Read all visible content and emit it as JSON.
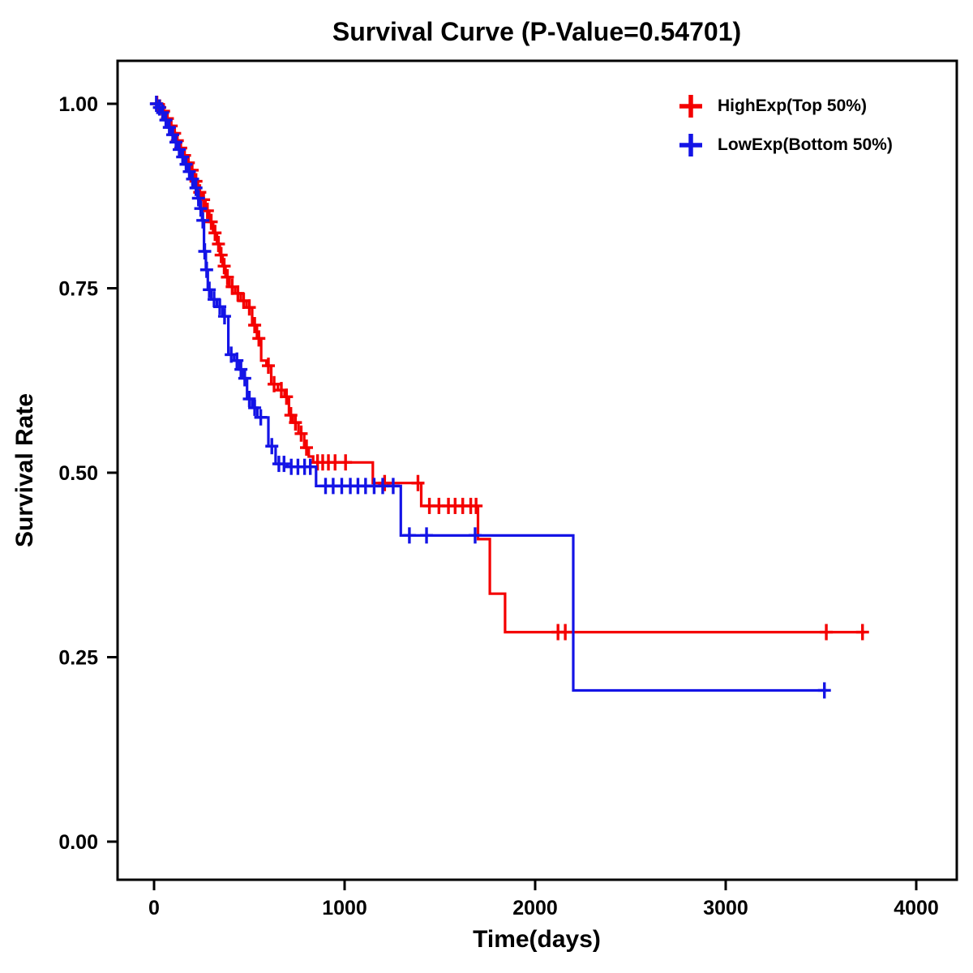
{
  "chart_data": {
    "type": "line",
    "subtype": "kaplan-meier-step",
    "title": "Survival Curve (P-Value=0.54701)",
    "p_value": "0.54701",
    "xlabel": "Time(days)",
    "ylabel": "Survival Rate",
    "xlim": [
      0,
      4000
    ],
    "ylim": [
      0,
      1
    ],
    "xticks": [
      0,
      1000,
      2000,
      3000,
      4000
    ],
    "xtick_labels": [
      "0",
      "1000",
      "2000",
      "3000",
      "4000"
    ],
    "yticks": [
      0,
      0.25,
      0.5,
      0.75,
      1
    ],
    "ytick_labels": [
      "0.00",
      "0.25",
      "0.50",
      "0.75",
      "1.00"
    ],
    "grid": false,
    "legend_position": "top-right",
    "axis_color": "#000000",
    "series": [
      {
        "name": "HighExp(Top 50%)",
        "key": "highexp",
        "color": "#F40000",
        "steps": [
          [
            0,
            1.0
          ],
          [
            20,
            0.995
          ],
          [
            40,
            0.99
          ],
          [
            60,
            0.98
          ],
          [
            80,
            0.97
          ],
          [
            100,
            0.96
          ],
          [
            115,
            0.95
          ],
          [
            130,
            0.94
          ],
          [
            150,
            0.93
          ],
          [
            170,
            0.92
          ],
          [
            190,
            0.91
          ],
          [
            210,
            0.895
          ],
          [
            230,
            0.88
          ],
          [
            250,
            0.87
          ],
          [
            270,
            0.855
          ],
          [
            290,
            0.84
          ],
          [
            310,
            0.825
          ],
          [
            330,
            0.81
          ],
          [
            345,
            0.795
          ],
          [
            360,
            0.78
          ],
          [
            375,
            0.765
          ],
          [
            395,
            0.752
          ],
          [
            425,
            0.743
          ],
          [
            455,
            0.733
          ],
          [
            485,
            0.724
          ],
          [
            515,
            0.7
          ],
          [
            540,
            0.682
          ],
          [
            562,
            0.652
          ],
          [
            590,
            0.645
          ],
          [
            615,
            0.62
          ],
          [
            650,
            0.612
          ],
          [
            685,
            0.603
          ],
          [
            708,
            0.578
          ],
          [
            728,
            0.568
          ],
          [
            758,
            0.553
          ],
          [
            788,
            0.534
          ],
          [
            812,
            0.522
          ],
          [
            835,
            0.514
          ],
          [
            1148,
            0.486
          ],
          [
            1402,
            0.455
          ],
          [
            1700,
            0.41
          ],
          [
            1762,
            0.336
          ],
          [
            1842,
            0.284
          ],
          [
            3730,
            0.284
          ]
        ],
        "censors": [
          [
            15,
            1.0
          ],
          [
            30,
            0.995
          ],
          [
            50,
            0.99
          ],
          [
            70,
            0.98
          ],
          [
            90,
            0.97
          ],
          [
            108,
            0.96
          ],
          [
            122,
            0.95
          ],
          [
            140,
            0.94
          ],
          [
            160,
            0.93
          ],
          [
            180,
            0.92
          ],
          [
            200,
            0.91
          ],
          [
            220,
            0.895
          ],
          [
            240,
            0.88
          ],
          [
            260,
            0.87
          ],
          [
            280,
            0.855
          ],
          [
            300,
            0.84
          ],
          [
            320,
            0.825
          ],
          [
            338,
            0.81
          ],
          [
            352,
            0.795
          ],
          [
            368,
            0.78
          ],
          [
            385,
            0.765
          ],
          [
            410,
            0.752
          ],
          [
            440,
            0.743
          ],
          [
            470,
            0.733
          ],
          [
            500,
            0.724
          ],
          [
            528,
            0.7
          ],
          [
            550,
            0.682
          ],
          [
            600,
            0.645
          ],
          [
            630,
            0.62
          ],
          [
            668,
            0.612
          ],
          [
            695,
            0.603
          ],
          [
            718,
            0.578
          ],
          [
            742,
            0.568
          ],
          [
            772,
            0.553
          ],
          [
            800,
            0.534
          ],
          [
            858,
            0.514
          ],
          [
            885,
            0.514
          ],
          [
            915,
            0.514
          ],
          [
            950,
            0.514
          ],
          [
            1005,
            0.514
          ],
          [
            1210,
            0.486
          ],
          [
            1385,
            0.486
          ],
          [
            1445,
            0.455
          ],
          [
            1495,
            0.455
          ],
          [
            1545,
            0.455
          ],
          [
            1580,
            0.455
          ],
          [
            1620,
            0.455
          ],
          [
            1662,
            0.455
          ],
          [
            1690,
            0.455
          ],
          [
            2120,
            0.284
          ],
          [
            2158,
            0.284
          ],
          [
            3528,
            0.284
          ],
          [
            3718,
            0.284
          ]
        ]
      },
      {
        "name": "LowExp(Bottom 50%)",
        "key": "lowexp",
        "color": "#1414E6",
        "steps": [
          [
            0,
            1.0
          ],
          [
            18,
            0.995
          ],
          [
            36,
            0.988
          ],
          [
            55,
            0.978
          ],
          [
            72,
            0.968
          ],
          [
            90,
            0.958
          ],
          [
            108,
            0.948
          ],
          [
            125,
            0.938
          ],
          [
            142,
            0.928
          ],
          [
            160,
            0.918
          ],
          [
            178,
            0.908
          ],
          [
            196,
            0.898
          ],
          [
            214,
            0.886
          ],
          [
            228,
            0.872
          ],
          [
            240,
            0.858
          ],
          [
            252,
            0.842
          ],
          [
            262,
            0.8
          ],
          [
            272,
            0.775
          ],
          [
            282,
            0.748
          ],
          [
            300,
            0.735
          ],
          [
            330,
            0.725
          ],
          [
            360,
            0.712
          ],
          [
            390,
            0.66
          ],
          [
            420,
            0.652
          ],
          [
            448,
            0.64
          ],
          [
            468,
            0.628
          ],
          [
            488,
            0.6
          ],
          [
            515,
            0.588
          ],
          [
            542,
            0.575
          ],
          [
            600,
            0.536
          ],
          [
            638,
            0.512
          ],
          [
            700,
            0.508
          ],
          [
            850,
            0.482
          ],
          [
            1295,
            0.415
          ],
          [
            2200,
            0.205
          ],
          [
            3530,
            0.205
          ]
        ],
        "censors": [
          [
            12,
            1.0
          ],
          [
            28,
            0.995
          ],
          [
            45,
            0.988
          ],
          [
            62,
            0.978
          ],
          [
            80,
            0.968
          ],
          [
            98,
            0.958
          ],
          [
            115,
            0.948
          ],
          [
            132,
            0.938
          ],
          [
            150,
            0.928
          ],
          [
            168,
            0.918
          ],
          [
            185,
            0.908
          ],
          [
            202,
            0.898
          ],
          [
            220,
            0.886
          ],
          [
            233,
            0.872
          ],
          [
            245,
            0.858
          ],
          [
            256,
            0.842
          ],
          [
            266,
            0.8
          ],
          [
            276,
            0.775
          ],
          [
            290,
            0.748
          ],
          [
            315,
            0.735
          ],
          [
            345,
            0.725
          ],
          [
            370,
            0.712
          ],
          [
            405,
            0.66
          ],
          [
            435,
            0.652
          ],
          [
            456,
            0.64
          ],
          [
            476,
            0.628
          ],
          [
            500,
            0.6
          ],
          [
            528,
            0.588
          ],
          [
            560,
            0.575
          ],
          [
            618,
            0.536
          ],
          [
            655,
            0.512
          ],
          [
            682,
            0.512
          ],
          [
            720,
            0.508
          ],
          [
            755,
            0.508
          ],
          [
            790,
            0.508
          ],
          [
            820,
            0.508
          ],
          [
            900,
            0.482
          ],
          [
            940,
            0.482
          ],
          [
            985,
            0.482
          ],
          [
            1030,
            0.482
          ],
          [
            1070,
            0.482
          ],
          [
            1110,
            0.482
          ],
          [
            1155,
            0.482
          ],
          [
            1200,
            0.482
          ],
          [
            1255,
            0.482
          ],
          [
            1340,
            0.415
          ],
          [
            1430,
            0.415
          ],
          [
            1685,
            0.415
          ],
          [
            3518,
            0.205
          ]
        ]
      }
    ]
  },
  "legend": {
    "items": [
      {
        "label": "HighExp(Top 50%)",
        "color": "#F40000",
        "marker": "plus"
      },
      {
        "label": "LowExp(Bottom 50%)",
        "color": "#1414E6",
        "marker": "plus"
      }
    ]
  }
}
